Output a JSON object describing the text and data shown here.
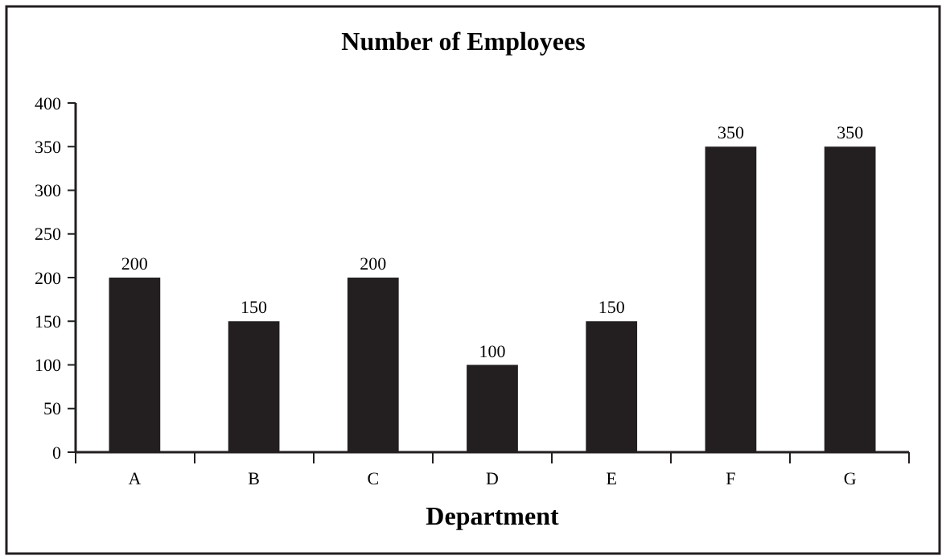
{
  "chart_data": {
    "type": "bar",
    "title": "Number of Employees",
    "xlabel": "Department",
    "categories": [
      "A",
      "B",
      "C",
      "D",
      "E",
      "F",
      "G"
    ],
    "values": [
      200,
      150,
      200,
      100,
      150,
      350,
      350
    ],
    "color": "#231f20",
    "ylim": [
      0,
      400
    ],
    "yticks": [
      0,
      50,
      100,
      150,
      200,
      250,
      300,
      350,
      400
    ],
    "data_labels": true
  }
}
